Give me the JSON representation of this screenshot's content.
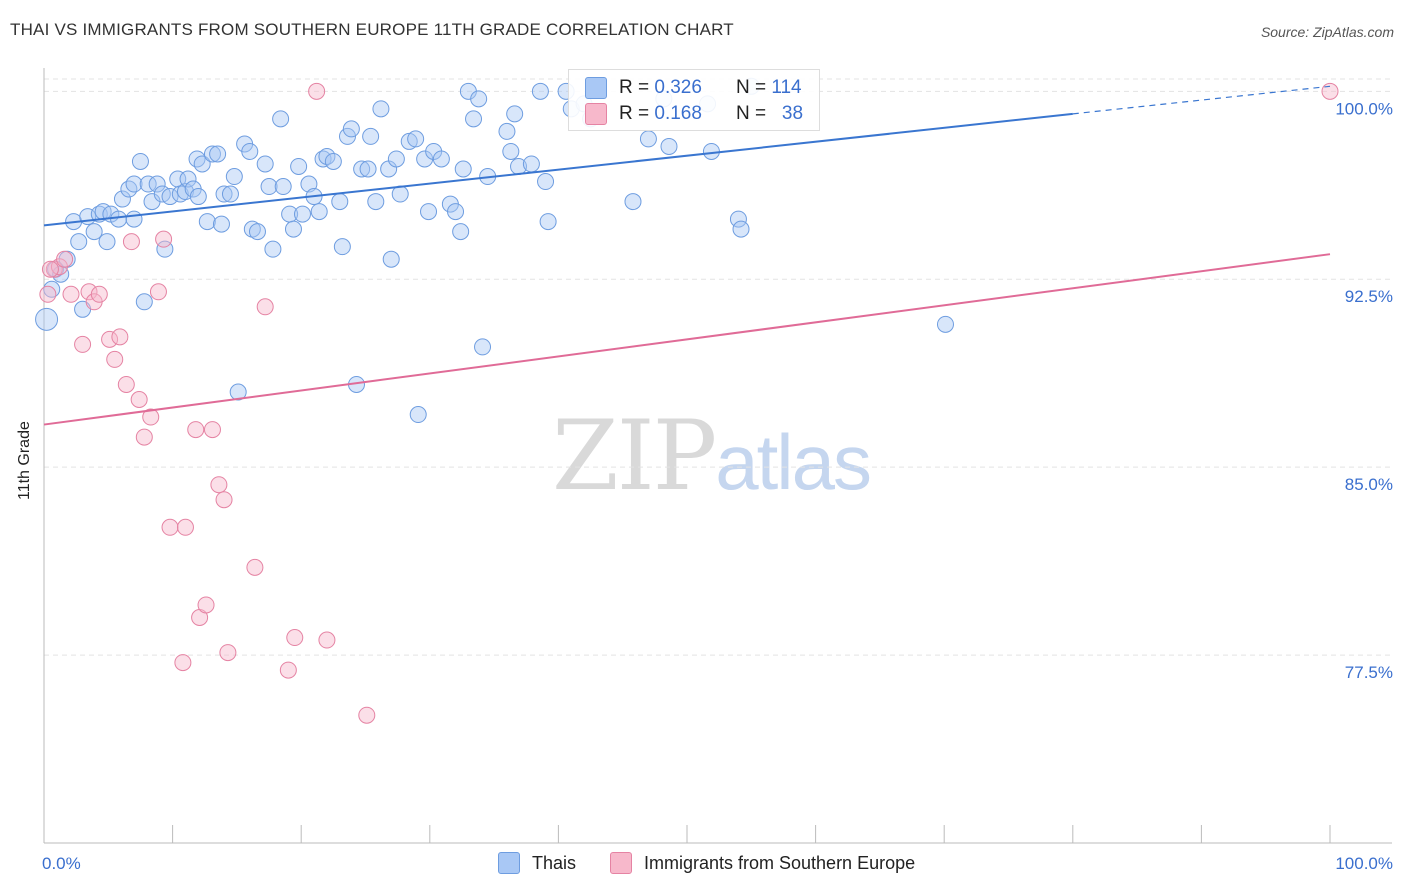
{
  "title": "THAI VS IMMIGRANTS FROM SOUTHERN EUROPE 11TH GRADE CORRELATION CHART",
  "source": "Source: ZipAtlas.com",
  "watermark": {
    "zip": "ZIP",
    "atlas": "atlas"
  },
  "legend": {
    "r_label": "R =",
    "n_label": "N =",
    "series": [
      {
        "name": "Thais",
        "r": "0.326",
        "n": "114",
        "color": "#a9c8f5",
        "edge": "#6e9de0"
      },
      {
        "name": "Immigrants from Southern Europe",
        "r": "0.168",
        "n": "38",
        "color": "#f7b8cb",
        "edge": "#e583a3"
      }
    ]
  },
  "chart_data": {
    "type": "scatter",
    "title": "THAI VS IMMIGRANTS FROM SOUTHERN EUROPE 11TH GRADE CORRELATION CHART",
    "xlabel": "",
    "ylabel": "11th Grade",
    "xlim": [
      0,
      100
    ],
    "ylim": [
      70.0,
      101.25
    ],
    "x_tick_labels": [
      "0.0%",
      "100.0%"
    ],
    "y_ticks": [
      77.5,
      85.0,
      92.5,
      100.0
    ],
    "y_tick_labels": [
      "77.5%",
      "85.0%",
      "92.5%",
      "100.0%"
    ],
    "colors": {
      "blue_line": "#3a76d0",
      "pink_line": "#e06b97",
      "tick_label": "#3a6fce",
      "grid": "#e3e3e3"
    },
    "series": [
      {
        "name": "Thais",
        "trend": {
          "x0": 0,
          "y0": 94.65,
          "x1": 80,
          "y1": 99.1,
          "dashed_to_x": 100,
          "dashed_to_y": 100.2
        },
        "points": [
          [
            0.2,
            90.9
          ],
          [
            0.6,
            92.1
          ],
          [
            0.9,
            92.9
          ],
          [
            1.3,
            92.7
          ],
          [
            1.8,
            93.3
          ],
          [
            2.3,
            94.8
          ],
          [
            2.7,
            94.0
          ],
          [
            3.0,
            91.3
          ],
          [
            3.4,
            95.0
          ],
          [
            3.9,
            94.4
          ],
          [
            4.3,
            95.1
          ],
          [
            4.6,
            95.2
          ],
          [
            4.9,
            94.0
          ],
          [
            5.2,
            95.1
          ],
          [
            5.8,
            94.9
          ],
          [
            6.1,
            95.7
          ],
          [
            6.6,
            96.1
          ],
          [
            7.0,
            96.3
          ],
          [
            7.0,
            94.9
          ],
          [
            7.5,
            97.2
          ],
          [
            7.8,
            91.6
          ],
          [
            8.1,
            96.3
          ],
          [
            8.4,
            95.6
          ],
          [
            8.8,
            96.3
          ],
          [
            9.2,
            95.9
          ],
          [
            9.4,
            93.7
          ],
          [
            9.8,
            95.8
          ],
          [
            10.4,
            96.5
          ],
          [
            10.6,
            95.9
          ],
          [
            11.0,
            96.0
          ],
          [
            11.2,
            96.5
          ],
          [
            11.6,
            96.1
          ],
          [
            11.9,
            97.3
          ],
          [
            12.0,
            95.8
          ],
          [
            12.3,
            97.1
          ],
          [
            12.7,
            94.8
          ],
          [
            13.1,
            97.5
          ],
          [
            13.5,
            97.5
          ],
          [
            13.8,
            94.7
          ],
          [
            14.0,
            95.9
          ],
          [
            14.5,
            95.9
          ],
          [
            14.8,
            96.6
          ],
          [
            15.1,
            88.0
          ],
          [
            15.6,
            97.9
          ],
          [
            16.0,
            97.6
          ],
          [
            16.2,
            94.5
          ],
          [
            16.6,
            94.4
          ],
          [
            17.2,
            97.1
          ],
          [
            17.5,
            96.2
          ],
          [
            17.8,
            93.7
          ],
          [
            18.4,
            98.9
          ],
          [
            18.6,
            96.2
          ],
          [
            19.1,
            95.1
          ],
          [
            19.4,
            94.5
          ],
          [
            19.8,
            97.0
          ],
          [
            20.1,
            95.1
          ],
          [
            20.6,
            96.3
          ],
          [
            21.0,
            95.8
          ],
          [
            21.4,
            95.2
          ],
          [
            21.7,
            97.3
          ],
          [
            22.0,
            97.4
          ],
          [
            22.5,
            97.2
          ],
          [
            23.0,
            95.6
          ],
          [
            23.2,
            93.8
          ],
          [
            23.6,
            98.2
          ],
          [
            23.9,
            98.5
          ],
          [
            24.3,
            88.3
          ],
          [
            24.7,
            96.9
          ],
          [
            25.2,
            96.9
          ],
          [
            25.4,
            98.2
          ],
          [
            25.8,
            95.6
          ],
          [
            26.2,
            99.3
          ],
          [
            26.8,
            96.9
          ],
          [
            27.0,
            93.3
          ],
          [
            27.4,
            97.3
          ],
          [
            27.7,
            95.9
          ],
          [
            28.4,
            98.0
          ],
          [
            28.9,
            98.1
          ],
          [
            29.1,
            87.1
          ],
          [
            29.6,
            97.3
          ],
          [
            29.9,
            95.2
          ],
          [
            30.3,
            97.6
          ],
          [
            30.9,
            97.3
          ],
          [
            31.6,
            95.5
          ],
          [
            32.0,
            95.2
          ],
          [
            32.4,
            94.4
          ],
          [
            32.6,
            96.9
          ],
          [
            33.0,
            100.0
          ],
          [
            33.4,
            98.9
          ],
          [
            33.8,
            99.7
          ],
          [
            34.1,
            89.8
          ],
          [
            34.5,
            96.6
          ],
          [
            36.0,
            98.4
          ],
          [
            36.3,
            97.6
          ],
          [
            36.6,
            99.1
          ],
          [
            36.9,
            97.0
          ],
          [
            37.9,
            97.1
          ],
          [
            38.6,
            100.0
          ],
          [
            39.0,
            96.4
          ],
          [
            39.2,
            94.8
          ],
          [
            40.6,
            100.0
          ],
          [
            41.0,
            99.3
          ],
          [
            42.0,
            99.5
          ],
          [
            42.5,
            98.9
          ],
          [
            45.8,
            95.6
          ],
          [
            47.0,
            98.1
          ],
          [
            48.2,
            99.7
          ],
          [
            48.6,
            97.8
          ],
          [
            51.6,
            99.5
          ],
          [
            51.9,
            97.6
          ],
          [
            54.0,
            94.9
          ],
          [
            54.2,
            94.5
          ],
          [
            70.1,
            90.7
          ],
          [
            55.0,
            100.2
          ]
        ]
      },
      {
        "name": "Immigrants from Southern Europe",
        "trend": {
          "x0": 0,
          "y0": 86.7,
          "x1": 100,
          "y1": 93.5
        },
        "points": [
          [
            0.3,
            91.9
          ],
          [
            0.8,
            92.9
          ],
          [
            1.2,
            93.0
          ],
          [
            1.6,
            93.3
          ],
          [
            2.1,
            91.9
          ],
          [
            3.0,
            89.9
          ],
          [
            3.5,
            92.0
          ],
          [
            3.9,
            91.6
          ],
          [
            4.3,
            91.9
          ],
          [
            5.1,
            90.1
          ],
          [
            5.5,
            89.3
          ],
          [
            5.9,
            90.2
          ],
          [
            6.4,
            88.3
          ],
          [
            6.8,
            94.0
          ],
          [
            7.4,
            87.7
          ],
          [
            7.8,
            86.2
          ],
          [
            8.3,
            87.0
          ],
          [
            8.9,
            92.0
          ],
          [
            9.3,
            94.1
          ],
          [
            9.8,
            82.6
          ],
          [
            11.0,
            82.6
          ],
          [
            11.8,
            86.5
          ],
          [
            12.1,
            79.0
          ],
          [
            12.6,
            79.5
          ],
          [
            13.1,
            86.5
          ],
          [
            13.6,
            84.3
          ],
          [
            14.0,
            83.7
          ],
          [
            14.3,
            77.6
          ],
          [
            10.8,
            77.2
          ],
          [
            16.4,
            81.0
          ],
          [
            17.2,
            91.4
          ],
          [
            19.0,
            76.9
          ],
          [
            19.5,
            78.2
          ],
          [
            21.2,
            100.0
          ],
          [
            22.0,
            78.1
          ],
          [
            25.1,
            75.1
          ],
          [
            100.0,
            100.0
          ],
          [
            0.5,
            92.9
          ]
        ]
      }
    ]
  }
}
